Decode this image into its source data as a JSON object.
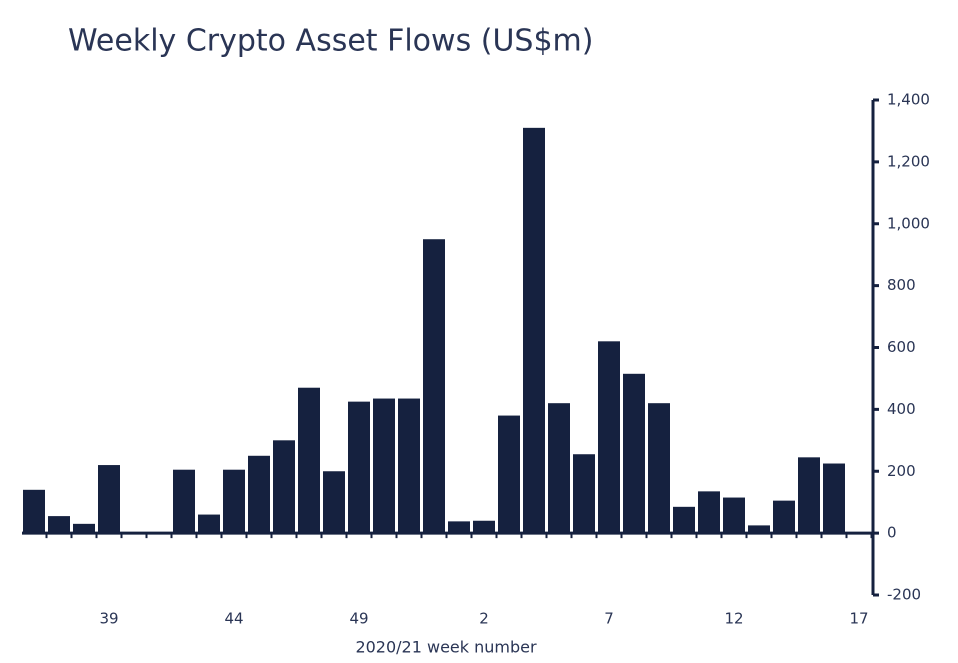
{
  "chart_data": {
    "type": "bar",
    "title": "Weekly Crypto Asset Flows (US$m)",
    "x_label": "2020/21 week number",
    "categories": [
      null,
      null,
      null,
      "39",
      null,
      null,
      null,
      null,
      "44",
      null,
      null,
      null,
      null,
      "49",
      null,
      null,
      null,
      null,
      "2",
      null,
      null,
      null,
      null,
      "7",
      null,
      null,
      null,
      null,
      "12",
      null,
      null,
      null,
      null,
      "17"
    ],
    "values": [
      140,
      55,
      30,
      220,
      0,
      0,
      205,
      60,
      205,
      250,
      300,
      470,
      200,
      425,
      435,
      435,
      950,
      38,
      40,
      380,
      1310,
      420,
      255,
      620,
      515,
      420,
      85,
      135,
      115,
      25,
      105,
      245,
      225,
      null
    ],
    "color": "#15213f",
    "ylim": [
      -200,
      1400
    ],
    "yticks": [
      -200,
      0,
      200,
      400,
      600,
      800,
      {
        "value": 1000,
        "label": "1,000"
      },
      {
        "value": 1200,
        "label": "1,200"
      },
      {
        "value": 1400,
        "label": "1,400"
      }
    ],
    "y_axis_side": "right",
    "grid": false
  }
}
